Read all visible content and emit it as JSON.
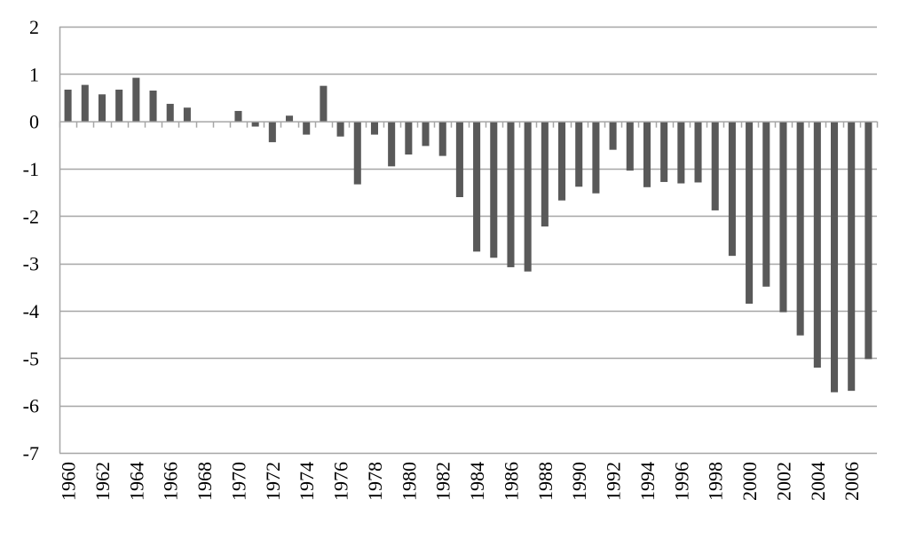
{
  "chart_data": {
    "type": "bar",
    "title": "",
    "xlabel": "",
    "ylabel": "",
    "ylim": [
      -7,
      2
    ],
    "yticks": [
      2,
      1,
      0,
      -1,
      -2,
      -3,
      -4,
      -5,
      -6,
      -7
    ],
    "grid": true,
    "legend": "none",
    "bar_color": "#595959",
    "grid_color": "#a6a6a6",
    "categories": [
      "1960",
      "1961",
      "1962",
      "1963",
      "1964",
      "1965",
      "1966",
      "1967",
      "1968",
      "1969",
      "1970",
      "1971",
      "1972",
      "1973",
      "1974",
      "1975",
      "1976",
      "1977",
      "1978",
      "1979",
      "1980",
      "1981",
      "1982",
      "1983",
      "1984",
      "1985",
      "1986",
      "1987",
      "1988",
      "1989",
      "1990",
      "1991",
      "1992",
      "1993",
      "1994",
      "1995",
      "1996",
      "1997",
      "1998",
      "1999",
      "2000",
      "2001",
      "2002",
      "2003",
      "2004",
      "2005",
      "2006",
      "2007"
    ],
    "xtick_labels": [
      "1960",
      "1962",
      "1964",
      "1966",
      "1968",
      "1970",
      "1972",
      "1974",
      "1976",
      "1978",
      "1980",
      "1982",
      "1984",
      "1986",
      "1988",
      "1990",
      "1992",
      "1994",
      "1996",
      "1998",
      "2000",
      "2002",
      "2004",
      "2006"
    ],
    "values": [
      0.67,
      0.77,
      0.57,
      0.67,
      0.92,
      0.65,
      0.37,
      0.29,
      0,
      0,
      0.22,
      -0.11,
      -0.44,
      0.12,
      -0.28,
      0.75,
      -0.32,
      -1.33,
      -0.28,
      -0.95,
      -0.7,
      -0.52,
      -0.73,
      -1.6,
      -2.75,
      -2.88,
      -3.08,
      -3.17,
      -2.22,
      -1.67,
      -1.38,
      -1.52,
      -0.6,
      -1.04,
      -1.39,
      -1.28,
      -1.31,
      -1.29,
      -1.88,
      -2.84,
      -3.85,
      -3.49,
      -4.03,
      -4.52,
      -5.2,
      -5.72,
      -5.69,
      -5.02
    ]
  }
}
